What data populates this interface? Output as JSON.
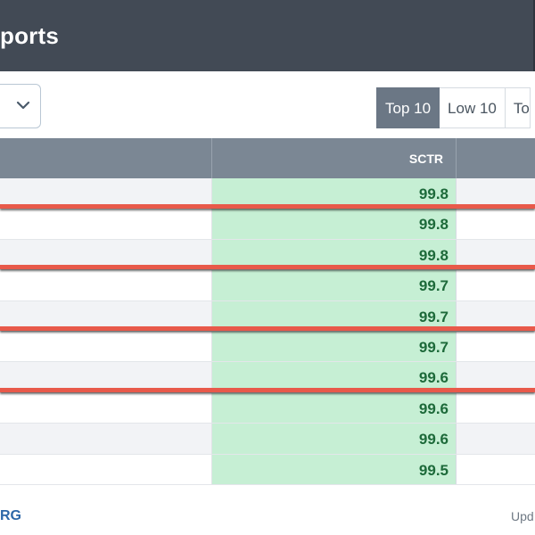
{
  "header": {
    "title": "ports"
  },
  "dropdown": {
    "icon": "chevron-down-icon"
  },
  "filters": [
    {
      "label": "Top 10",
      "active": true
    },
    {
      "label": "Low 10",
      "active": false
    },
    {
      "label": "To",
      "active": false
    }
  ],
  "table": {
    "columns": {
      "sctr": "SCTR"
    },
    "rows": [
      {
        "sctr": "99.8"
      },
      {
        "sctr": "99.8"
      },
      {
        "sctr": "99.8"
      },
      {
        "sctr": "99.7"
      },
      {
        "sctr": "99.7"
      },
      {
        "sctr": "99.7"
      },
      {
        "sctr": "99.6"
      },
      {
        "sctr": "99.6"
      },
      {
        "sctr": "99.6"
      },
      {
        "sctr": "99.5"
      }
    ]
  },
  "annotations": {
    "highlight_color": "#e8594a"
  },
  "footer": {
    "left_text": "RG",
    "right_text": "Upd"
  }
}
